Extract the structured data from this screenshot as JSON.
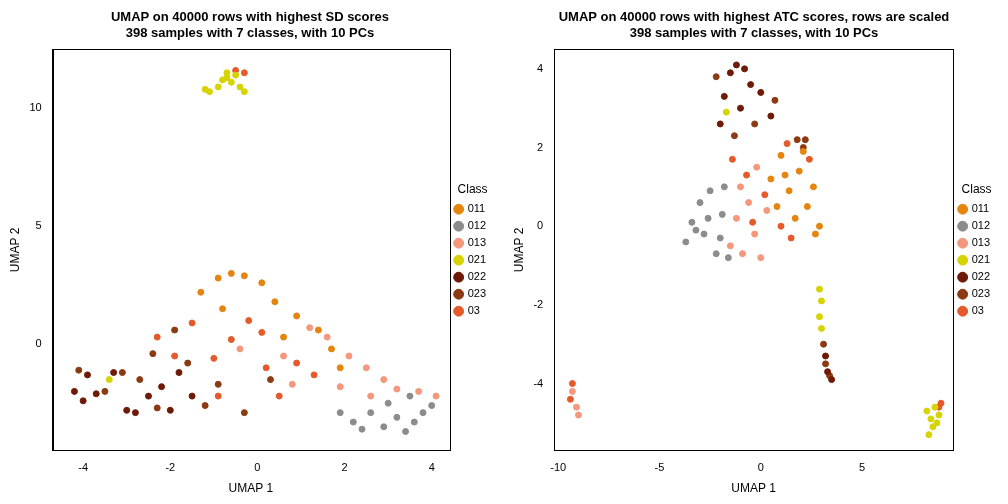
{
  "chart_data": [
    {
      "type": "scatter",
      "title": [
        "UMAP on 40000 rows with highest SD scores",
        "398 samples with 7 classes, with 10 PCs"
      ],
      "x_label": "UMAP 1",
      "y_label": "UMAP 2",
      "legend_title": "Class",
      "legend": "right",
      "marker": "circle",
      "grid": false,
      "xlim": [
        -4.7,
        4.4
      ],
      "xticks": [
        -4,
        -2,
        0,
        2,
        4
      ],
      "ylim": [
        -4.5,
        12.5
      ],
      "yticks": [
        0,
        5,
        10
      ],
      "series": [
        {
          "name": "011",
          "color": "#E6850E",
          "values": [
            [
              -1.3,
              2.2
            ],
            [
              -0.9,
              2.8
            ],
            [
              -0.6,
              3.0
            ],
            [
              -0.3,
              2.9
            ],
            [
              0.1,
              2.6
            ],
            [
              0.4,
              1.8
            ],
            [
              0.9,
              1.2
            ],
            [
              1.4,
              0.6
            ],
            [
              1.7,
              -0.2
            ],
            [
              1.9,
              -1.0
            ],
            [
              -0.8,
              1.5
            ],
            [
              0.6,
              0.3
            ]
          ]
        },
        {
          "name": "012",
          "color": "#8C8C8C",
          "values": [
            [
              2.2,
              -3.3
            ],
            [
              2.6,
              -2.9
            ],
            [
              2.9,
              -3.5
            ],
            [
              3.2,
              -3.1
            ],
            [
              3.4,
              -3.7
            ],
            [
              3.6,
              -3.3
            ],
            [
              3.8,
              -2.9
            ],
            [
              4.0,
              -2.6
            ],
            [
              3.0,
              -2.5
            ],
            [
              2.4,
              -3.6
            ],
            [
              3.5,
              -2.2
            ],
            [
              1.9,
              -2.9
            ]
          ]
        },
        {
          "name": "013",
          "color": "#F4977C",
          "values": [
            [
              1.2,
              0.7
            ],
            [
              1.6,
              0.3
            ],
            [
              2.1,
              -0.5
            ],
            [
              2.5,
              -1.0
            ],
            [
              2.9,
              -1.5
            ],
            [
              3.2,
              -1.9
            ],
            [
              3.7,
              -2.0
            ],
            [
              4.1,
              -2.2
            ],
            [
              0.6,
              -0.5
            ],
            [
              1.9,
              -1.8
            ],
            [
              0.8,
              -1.7
            ],
            [
              2.6,
              -2.2
            ],
            [
              -0.4,
              -0.2
            ]
          ]
        },
        {
          "name": "021",
          "color": "#D6D300",
          "values": [
            [
              -1.1,
              10.7
            ],
            [
              -0.9,
              10.9
            ],
            [
              -0.8,
              11.2
            ],
            [
              -0.7,
              11.3
            ],
            [
              -0.6,
              11.1
            ],
            [
              -0.5,
              11.4
            ],
            [
              -0.4,
              10.9
            ],
            [
              -0.3,
              10.7
            ],
            [
              -1.2,
              10.8
            ],
            [
              -3.4,
              -1.5
            ],
            [
              -0.7,
              11.5
            ]
          ]
        },
        {
          "name": "022",
          "color": "#6E1A07",
          "values": [
            [
              -4.2,
              -2.0
            ],
            [
              -4.0,
              -2.4
            ],
            [
              -3.9,
              -1.3
            ],
            [
              -3.7,
              -2.1
            ],
            [
              -3.0,
              -2.8
            ],
            [
              -2.8,
              -2.9
            ],
            [
              -2.5,
              -2.2
            ],
            [
              -2.2,
              -1.8
            ],
            [
              -2.0,
              -2.8
            ],
            [
              -1.8,
              -1.2
            ],
            [
              -3.3,
              -1.2
            ],
            [
              -1.5,
              -2.2
            ]
          ]
        },
        {
          "name": "023",
          "color": "#8B3A12",
          "values": [
            [
              -3.5,
              -2.0
            ],
            [
              -3.1,
              -1.2
            ],
            [
              -2.7,
              -1.5
            ],
            [
              -2.4,
              -0.4
            ],
            [
              -1.9,
              0.6
            ],
            [
              -1.6,
              -0.8
            ],
            [
              -1.2,
              -2.6
            ],
            [
              -0.9,
              -1.7
            ],
            [
              -0.3,
              -2.9
            ],
            [
              0.3,
              -1.5
            ],
            [
              -2.3,
              -2.7
            ],
            [
              -4.1,
              -1.1
            ]
          ]
        },
        {
          "name": "03",
          "color": "#E55A2B",
          "values": [
            [
              -0.5,
              11.6
            ],
            [
              -0.3,
              11.5
            ],
            [
              -2.3,
              0.3
            ],
            [
              -1.9,
              -0.5
            ],
            [
              -1.5,
              0.9
            ],
            [
              -1.0,
              -0.6
            ],
            [
              -0.6,
              0.2
            ],
            [
              -0.2,
              1.0
            ],
            [
              0.2,
              -1.0
            ],
            [
              0.5,
              -2.2
            ],
            [
              0.9,
              -0.8
            ],
            [
              1.3,
              -1.3
            ],
            [
              -0.9,
              -2.2
            ],
            [
              0.1,
              0.5
            ]
          ]
        }
      ]
    },
    {
      "type": "scatter",
      "title": [
        "UMAP on 40000 rows with highest ATC scores, rows are scaled",
        "398 samples with 7 classes, with 10 PCs"
      ],
      "x_label": "UMAP 1",
      "y_label": "UMAP 2",
      "legend_title": "Class",
      "legend": "right",
      "marker": "circle",
      "grid": false,
      "xlim": [
        -10.2,
        9.5
      ],
      "xticks": [
        -10,
        -5,
        0,
        5
      ],
      "ylim": [
        -5.7,
        4.5
      ],
      "yticks": [
        -4,
        -2,
        0,
        2,
        4
      ],
      "series": [
        {
          "name": "011",
          "color": "#E6850E",
          "values": [
            [
              0.5,
              1.2
            ],
            [
              1.0,
              1.8
            ],
            [
              1.4,
              0.9
            ],
            [
              1.9,
              1.4
            ],
            [
              2.3,
              0.5
            ],
            [
              2.6,
              1.0
            ],
            [
              2.9,
              0.0
            ],
            [
              1.7,
              0.2
            ],
            [
              0.8,
              0.5
            ],
            [
              2.1,
              1.9
            ],
            [
              1.2,
              1.3
            ],
            [
              2.7,
              -0.2
            ]
          ]
        },
        {
          "name": "012",
          "color": "#8C8C8C",
          "values": [
            [
              -3.7,
              -0.4
            ],
            [
              -3.4,
              0.1
            ],
            [
              -3.0,
              0.6
            ],
            [
              -2.8,
              -0.2
            ],
            [
              -2.5,
              0.9
            ],
            [
              -2.2,
              -0.7
            ],
            [
              -1.9,
              0.3
            ],
            [
              -1.6,
              -0.8
            ],
            [
              -3.2,
              -0.1
            ],
            [
              -2.6,
              0.2
            ],
            [
              -1.8,
              1.0
            ],
            [
              -2.0,
              -0.3
            ]
          ]
        },
        {
          "name": "013",
          "color": "#F4977C",
          "values": [
            [
              -1.5,
              -0.5
            ],
            [
              -1.2,
              0.2
            ],
            [
              -0.9,
              -0.7
            ],
            [
              -0.6,
              0.6
            ],
            [
              -0.3,
              -0.2
            ],
            [
              0.0,
              -0.8
            ],
            [
              0.3,
              0.4
            ],
            [
              -1.0,
              1.0
            ],
            [
              -9.3,
              -4.2
            ],
            [
              -9.1,
              -4.6
            ],
            [
              -9.0,
              -4.8
            ],
            [
              -0.2,
              1.5
            ]
          ]
        },
        {
          "name": "021",
          "color": "#D6D300",
          "values": [
            [
              -1.7,
              2.9
            ],
            [
              2.9,
              -1.6
            ],
            [
              3.0,
              -1.9
            ],
            [
              2.9,
              -2.3
            ],
            [
              3.0,
              -2.6
            ],
            [
              8.2,
              -4.7
            ],
            [
              8.4,
              -4.9
            ],
            [
              8.6,
              -4.6
            ],
            [
              8.5,
              -5.1
            ],
            [
              8.8,
              -4.8
            ],
            [
              8.3,
              -5.3
            ],
            [
              8.7,
              -5.0
            ]
          ]
        },
        {
          "name": "022",
          "color": "#6E1A07",
          "values": [
            [
              -1.5,
              3.9
            ],
            [
              -1.2,
              4.1
            ],
            [
              -0.8,
              4.0
            ],
            [
              -0.5,
              3.6
            ],
            [
              -1.8,
              3.3
            ],
            [
              -1.0,
              3.0
            ],
            [
              0.0,
              3.4
            ],
            [
              0.5,
              2.8
            ],
            [
              3.3,
              -3.7
            ],
            [
              3.5,
              -3.9
            ],
            [
              3.2,
              -3.3
            ],
            [
              -2.0,
              2.6
            ]
          ]
        },
        {
          "name": "023",
          "color": "#8B3A12",
          "values": [
            [
              2.2,
              2.2
            ],
            [
              2.1,
              2.0
            ],
            [
              -0.3,
              2.6
            ],
            [
              0.7,
              3.2
            ],
            [
              -1.3,
              2.3
            ],
            [
              3.1,
              -3.0
            ],
            [
              3.2,
              -3.5
            ],
            [
              3.4,
              -3.8
            ],
            [
              -2.2,
              3.8
            ],
            [
              1.8,
              2.2
            ]
          ]
        },
        {
          "name": "03",
          "color": "#E55A2B",
          "values": [
            [
              -9.3,
              -4.0
            ],
            [
              -9.4,
              -4.4
            ],
            [
              8.9,
              -4.5
            ],
            [
              8.8,
              -4.6
            ],
            [
              -0.7,
              1.3
            ],
            [
              0.2,
              0.8
            ],
            [
              1.0,
              0.0
            ],
            [
              1.5,
              -0.3
            ],
            [
              -0.4,
              0.1
            ],
            [
              2.4,
              1.7
            ],
            [
              1.3,
              2.1
            ],
            [
              -1.4,
              1.7
            ]
          ]
        }
      ]
    }
  ]
}
